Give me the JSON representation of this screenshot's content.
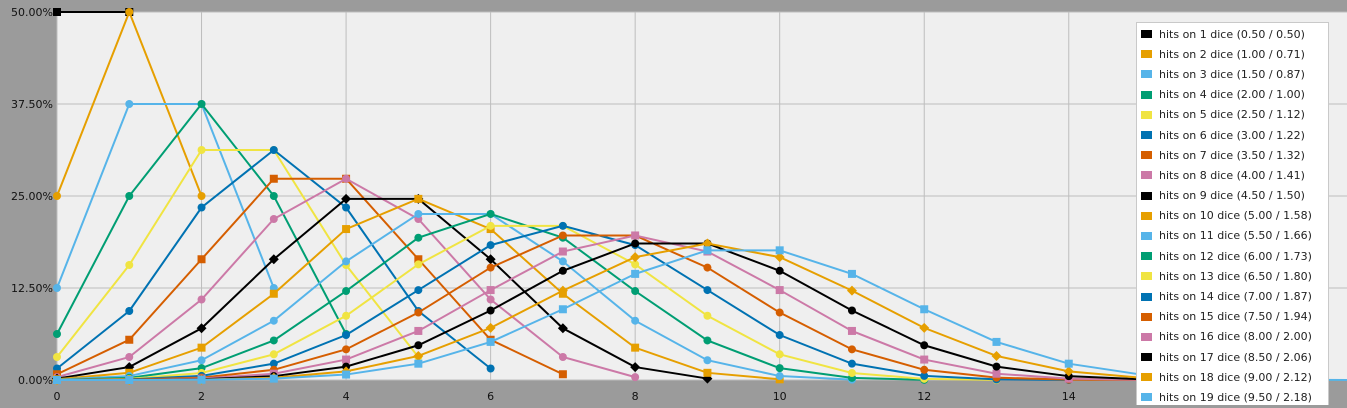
{
  "chart_data": {
    "type": "line",
    "title": "",
    "xlabel": "",
    "ylabel": "",
    "xlim": [
      0,
      17.85
    ],
    "ylim": [
      0,
      0.5
    ],
    "x_ticks": [
      0,
      2,
      4,
      6,
      8,
      10,
      12,
      14
    ],
    "x_tick_labels": [
      "0",
      "2",
      "4",
      "6",
      "8",
      "10",
      "12",
      "14"
    ],
    "y_ticks": [
      0,
      0.125,
      0.25,
      0.375,
      0.5
    ],
    "y_tick_labels": [
      "0.00%",
      "12.50%",
      "25.00%",
      "37.50%",
      "50.00%"
    ],
    "grid": true,
    "legend_position": "right",
    "colors": [
      "#000000",
      "#e69f00",
      "#56b4e9",
      "#009e73",
      "#f0e442",
      "#0072b2",
      "#d55e00",
      "#cc79a7"
    ],
    "marker_cycle": [
      "square",
      "circle",
      "circle",
      "circle",
      "circle",
      "circle",
      "square",
      "circle",
      "diamond"
    ],
    "series": [
      {
        "dice": 1,
        "name": "hits on 1 dice (0.50 / 0.50)"
      },
      {
        "dice": 2,
        "name": "hits on 2 dice (1.00 / 0.71)"
      },
      {
        "dice": 3,
        "name": "hits on 3 dice (1.50 / 0.87)"
      },
      {
        "dice": 4,
        "name": "hits on 4 dice (2.00 / 1.00)"
      },
      {
        "dice": 5,
        "name": "hits on 5 dice (2.50 / 1.12)"
      },
      {
        "dice": 6,
        "name": "hits on 6 dice (3.00 / 1.22)"
      },
      {
        "dice": 7,
        "name": "hits on 7 dice (3.50 / 1.32)"
      },
      {
        "dice": 8,
        "name": "hits on 8 dice (4.00 / 1.41)"
      },
      {
        "dice": 9,
        "name": "hits on 9 dice (4.50 / 1.50)"
      },
      {
        "dice": 10,
        "name": "hits on 10 dice (5.00 / 1.58)"
      },
      {
        "dice": 11,
        "name": "hits on 11 dice (5.50 / 1.66)"
      },
      {
        "dice": 12,
        "name": "hits on 12 dice (6.00 / 1.73)"
      },
      {
        "dice": 13,
        "name": "hits on 13 dice (6.50 / 1.80)"
      },
      {
        "dice": 14,
        "name": "hits on 14 dice (7.00 / 1.87)"
      },
      {
        "dice": 15,
        "name": "hits on 15 dice (7.50 / 1.94)"
      },
      {
        "dice": 16,
        "name": "hits on 16 dice (8.00 / 2.00)"
      },
      {
        "dice": 17,
        "name": "hits on 17 dice (8.50 / 2.06)"
      },
      {
        "dice": 18,
        "name": "hits on 18 dice (9.00 / 2.12)"
      },
      {
        "dice": 19,
        "name": "hits on 19 dice (9.50 / 2.18)"
      }
    ]
  }
}
